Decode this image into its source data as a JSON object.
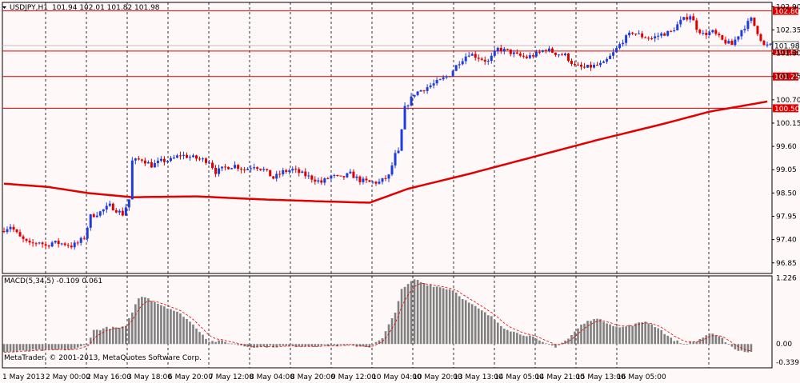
{
  "chart_data": {
    "type": "candlestick",
    "symbol_header": "USDJPY,H1",
    "ohlc_header": "101.94 102.01 101.82 101.98",
    "current_price_label": "101.98",
    "price_axis": {
      "min": 96.6,
      "max": 103.0,
      "ticks": [
        "102.90",
        "102.35",
        "101.80",
        "101.25",
        "100.70",
        "100.15",
        "99.60",
        "99.05",
        "98.50",
        "97.95",
        "97.40",
        "96.85"
      ]
    },
    "levels": [
      {
        "value": 102.8,
        "label": "102.80"
      },
      {
        "value": 101.85,
        "label": "101.85"
      },
      {
        "value": 101.25,
        "label": "101.25"
      },
      {
        "value": 100.5,
        "label": "100.50"
      }
    ],
    "moving_average_anchors": [
      [
        0,
        98.72
      ],
      [
        14,
        98.64
      ],
      [
        26,
        98.5
      ],
      [
        40,
        98.4
      ],
      [
        60,
        98.42
      ],
      [
        80,
        98.35
      ],
      [
        100,
        98.3
      ],
      [
        114,
        98.27
      ],
      [
        126,
        98.6
      ],
      [
        145,
        98.95
      ],
      [
        165,
        99.35
      ],
      [
        185,
        99.75
      ],
      [
        205,
        100.12
      ],
      [
        220,
        100.42
      ],
      [
        232,
        100.58
      ],
      [
        238,
        100.66
      ]
    ],
    "candle_anchors": [
      [
        0,
        97.6
      ],
      [
        3,
        97.72
      ],
      [
        6,
        97.45
      ],
      [
        9,
        97.28
      ],
      [
        12,
        97.35
      ],
      [
        14,
        97.25
      ],
      [
        16,
        97.33
      ],
      [
        20,
        97.3
      ],
      [
        22,
        97.25
      ],
      [
        24,
        97.32
      ],
      [
        26,
        97.45
      ],
      [
        28,
        97.95
      ],
      [
        31,
        98.05
      ],
      [
        34,
        98.2
      ],
      [
        36,
        98.1
      ],
      [
        38,
        98.0
      ],
      [
        40,
        98.35
      ],
      [
        41,
        99.25
      ],
      [
        44,
        99.3
      ],
      [
        47,
        99.15
      ],
      [
        50,
        99.25
      ],
      [
        53,
        99.28
      ],
      [
        56,
        99.4
      ],
      [
        59,
        99.35
      ],
      [
        62,
        99.3
      ],
      [
        65,
        99.25
      ],
      [
        67,
        99.0
      ],
      [
        70,
        99.1
      ],
      [
        73,
        99.15
      ],
      [
        76,
        99.05
      ],
      [
        79,
        99.15
      ],
      [
        82,
        99.05
      ],
      [
        85,
        98.85
      ],
      [
        88,
        99.0
      ],
      [
        91,
        99.05
      ],
      [
        94,
        98.95
      ],
      [
        97,
        98.85
      ],
      [
        100,
        98.75
      ],
      [
        103,
        98.9
      ],
      [
        106,
        98.85
      ],
      [
        109,
        98.95
      ],
      [
        112,
        98.8
      ],
      [
        115,
        98.75
      ],
      [
        118,
        98.75
      ],
      [
        121,
        98.9
      ],
      [
        123,
        99.4
      ],
      [
        124,
        99.45
      ],
      [
        126,
        100.5
      ],
      [
        129,
        100.85
      ],
      [
        133,
        101.0
      ],
      [
        137,
        101.15
      ],
      [
        140,
        101.3
      ],
      [
        143,
        101.6
      ],
      [
        146,
        101.8
      ],
      [
        149,
        101.7
      ],
      [
        152,
        101.6
      ],
      [
        155,
        101.9
      ],
      [
        158,
        101.85
      ],
      [
        161,
        101.75
      ],
      [
        164,
        101.7
      ],
      [
        167,
        101.78
      ],
      [
        170,
        101.9
      ],
      [
        173,
        101.8
      ],
      [
        176,
        101.75
      ],
      [
        179,
        101.5
      ],
      [
        182,
        101.45
      ],
      [
        185,
        101.5
      ],
      [
        188,
        101.55
      ],
      [
        191,
        101.8
      ],
      [
        194,
        102.1
      ],
      [
        197,
        102.3
      ],
      [
        200,
        102.2
      ],
      [
        203,
        102.15
      ],
      [
        206,
        102.25
      ],
      [
        209,
        102.3
      ],
      [
        212,
        102.55
      ],
      [
        215,
        102.7
      ],
      [
        217,
        102.4
      ],
      [
        219,
        102.25
      ],
      [
        222,
        102.3
      ],
      [
        225,
        102.1
      ],
      [
        228,
        102.0
      ],
      [
        231,
        102.35
      ],
      [
        234,
        102.6
      ],
      [
        236,
        102.3
      ],
      [
        238,
        101.98
      ]
    ],
    "macd": {
      "label": "MACD(5,34,5) -0.109 0.061",
      "axis": {
        "min": -0.44,
        "max": 1.26,
        "ticks": [
          "1.226",
          "0.00",
          "-0.339"
        ]
      },
      "anchors": [
        [
          0,
          -0.15
        ],
        [
          10,
          -0.12
        ],
        [
          22,
          -0.1
        ],
        [
          26,
          0.0
        ],
        [
          28,
          0.25
        ],
        [
          32,
          0.3
        ],
        [
          36,
          0.3
        ],
        [
          38,
          0.32
        ],
        [
          40,
          0.6
        ],
        [
          42,
          0.85
        ],
        [
          44,
          0.88
        ],
        [
          48,
          0.75
        ],
        [
          52,
          0.65
        ],
        [
          56,
          0.52
        ],
        [
          60,
          0.3
        ],
        [
          64,
          0.05
        ],
        [
          68,
          0.05
        ],
        [
          72,
          0.0
        ],
        [
          76,
          -0.05
        ],
        [
          80,
          -0.05
        ],
        [
          90,
          -0.04
        ],
        [
          100,
          -0.03
        ],
        [
          108,
          -0.03
        ],
        [
          114,
          -0.05
        ],
        [
          118,
          0.1
        ],
        [
          122,
          0.6
        ],
        [
          124,
          1.0
        ],
        [
          128,
          1.2
        ],
        [
          132,
          1.1
        ],
        [
          136,
          1.05
        ],
        [
          140,
          1.0
        ],
        [
          144,
          0.8
        ],
        [
          148,
          0.65
        ],
        [
          152,
          0.5
        ],
        [
          156,
          0.3
        ],
        [
          160,
          0.2
        ],
        [
          164,
          0.15
        ],
        [
          168,
          0.02
        ],
        [
          172,
          -0.05
        ],
        [
          176,
          0.1
        ],
        [
          180,
          0.35
        ],
        [
          184,
          0.48
        ],
        [
          188,
          0.4
        ],
        [
          192,
          0.3
        ],
        [
          196,
          0.35
        ],
        [
          200,
          0.42
        ],
        [
          204,
          0.3
        ],
        [
          208,
          0.1
        ],
        [
          212,
          0.0
        ],
        [
          216,
          0.05
        ],
        [
          220,
          0.2
        ],
        [
          224,
          0.1
        ],
        [
          228,
          -0.1
        ],
        [
          232,
          -0.15
        ]
      ]
    },
    "time_labels": [
      "1 May 2013",
      "2 May 00:00",
      "2 May 16:00",
      "3 May 18:00",
      "6 May 20:00",
      "7 May 12:00",
      "8 May 04:00",
      "8 May 20:00",
      "9 May 12:00",
      "10 May 04:00",
      "10 May 20:00",
      "13 May 13:00",
      "14 May 05:00",
      "14 May 21:00",
      "15 May 13:00",
      "16 May 05:00"
    ],
    "copyright": "MetaTrader, © 2001-2013, MetaQuotes Software Corp.",
    "colors": {
      "bull": "#1e3cdc",
      "bear": "#dc0000",
      "ma": "#e00000",
      "macd_bar": "#808080",
      "signal": "#e00000",
      "grid": "#000000",
      "background": "#fff8f8"
    }
  }
}
